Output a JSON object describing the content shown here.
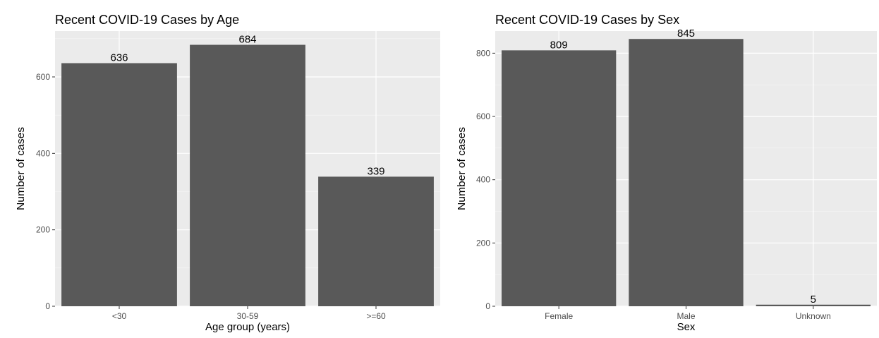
{
  "colors": {
    "panel_bg": "#ebebeb",
    "grid_major": "#ffffff",
    "bar": "#595959",
    "tick_text": "#4d4d4d"
  },
  "chart_data": [
    {
      "type": "bar",
      "title": "Recent COVID-19 Cases by Age",
      "xlabel": "Age group (years)",
      "ylabel": "Number of cases",
      "categories": [
        "<30",
        "30-59",
        ">=60"
      ],
      "values": [
        636,
        684,
        339
      ],
      "data_labels": [
        "636",
        "684",
        "339"
      ],
      "yticks": [
        0,
        200,
        400,
        600
      ],
      "ylim": [
        0,
        720
      ],
      "grid": true,
      "legend": "none"
    },
    {
      "type": "bar",
      "title": "Recent COVID-19 Cases by Sex",
      "xlabel": "Sex",
      "ylabel": "Number of cases",
      "categories": [
        "Female",
        "Male",
        "Unknown"
      ],
      "values": [
        809,
        845,
        5
      ],
      "data_labels": [
        "809",
        "845",
        "5"
      ],
      "yticks": [
        0,
        200,
        400,
        600,
        800
      ],
      "ylim": [
        0,
        870
      ],
      "grid": true,
      "legend": "none"
    }
  ]
}
